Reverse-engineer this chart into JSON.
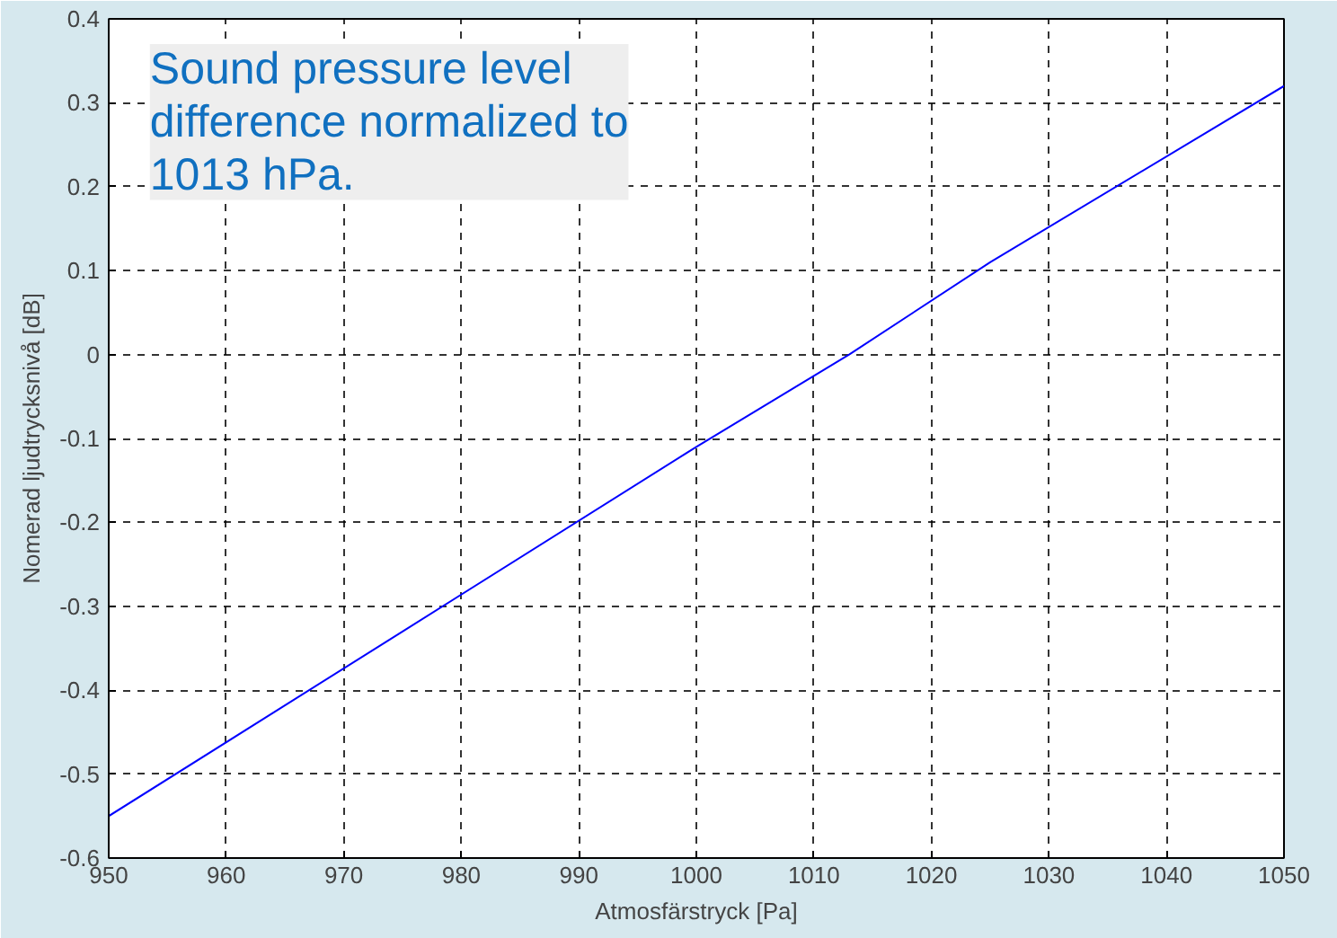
{
  "chart_data": {
    "type": "line",
    "xlabel": "Atmosfärstryck [Pa]",
    "ylabel": "Nomerad ljudtrycksnivå [dB]",
    "x": [
      950,
      975,
      1000,
      1013,
      1025,
      1050
    ],
    "series": [
      {
        "color": "#0000ff",
        "values": [
          -0.55,
          -0.33,
          -0.11,
          0.0,
          0.11,
          0.32
        ]
      }
    ],
    "xlim": [
      950,
      1050
    ],
    "ylim": [
      -0.6,
      0.4
    ],
    "xticks": [
      950,
      960,
      970,
      980,
      990,
      1000,
      1010,
      1020,
      1030,
      1040,
      1050
    ],
    "yticks": [
      -0.6,
      -0.5,
      -0.4,
      -0.3,
      -0.2,
      -0.1,
      0,
      0.1,
      0.2,
      0.3,
      0.4
    ],
    "grid": true,
    "line_style": "solid",
    "annotations": [
      "Sound pressure level\ndifference normalized to\n1013 hPa."
    ]
  }
}
